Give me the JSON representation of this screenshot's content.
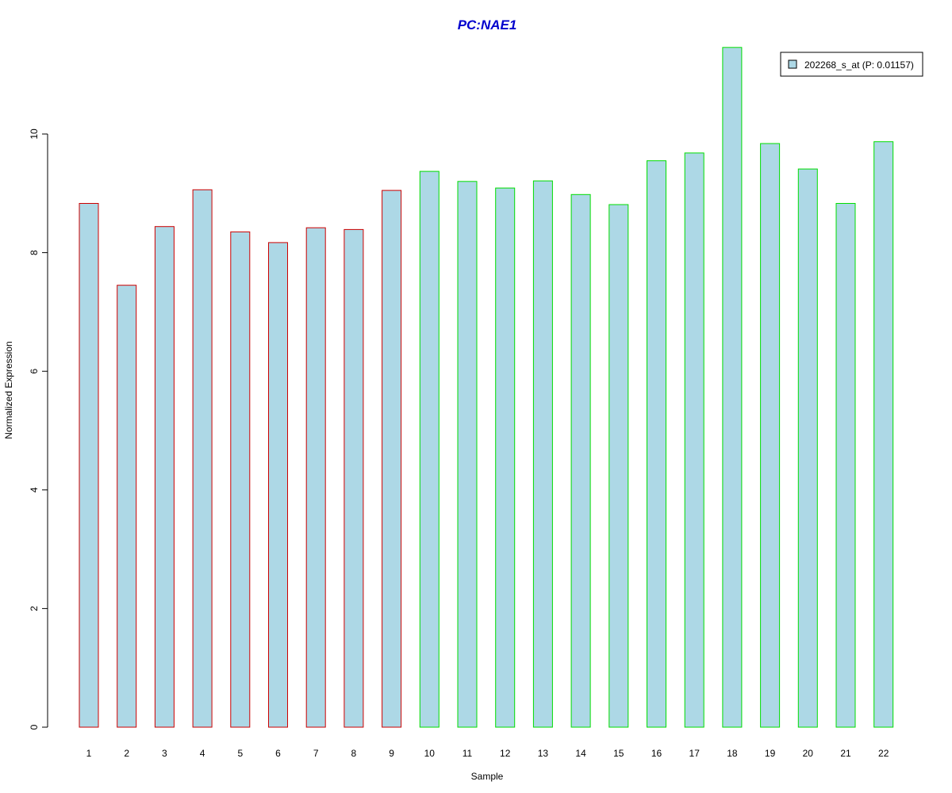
{
  "chart_data": {
    "type": "bar",
    "title": "PC:NAE1",
    "title_color": "#0000CD",
    "xlabel": "Sample",
    "ylabel": "Normalized Expression",
    "ylim": [
      0,
      11.5
    ],
    "yticks": [
      0,
      2,
      4,
      6,
      8,
      10
    ],
    "categories": [
      "1",
      "2",
      "3",
      "4",
      "5",
      "6",
      "7",
      "8",
      "9",
      "10",
      "11",
      "12",
      "13",
      "14",
      "15",
      "16",
      "17",
      "18",
      "19",
      "20",
      "21",
      "22"
    ],
    "series": [
      {
        "name": "202268_s_at (P: 0.01157)",
        "values": [
          8.83,
          7.45,
          8.44,
          9.06,
          8.35,
          8.17,
          8.42,
          8.39,
          9.05,
          9.37,
          9.2,
          9.09,
          9.21,
          8.98,
          8.81,
          9.55,
          9.68,
          11.46,
          9.84,
          9.41,
          8.83,
          9.87
        ]
      }
    ],
    "fill_color": "#ADD8E6",
    "border_colors": [
      "#CC0000",
      "#CC0000",
      "#CC0000",
      "#CC0000",
      "#CC0000",
      "#CC0000",
      "#CC0000",
      "#CC0000",
      "#CC0000",
      "#00DD00",
      "#00DD00",
      "#00DD00",
      "#00DD00",
      "#00DD00",
      "#00DD00",
      "#00DD00",
      "#00DD00",
      "#00DD00",
      "#00DD00",
      "#00DD00",
      "#00DD00",
      "#00DD00"
    ],
    "grid": false,
    "legend_position": "top-right"
  }
}
